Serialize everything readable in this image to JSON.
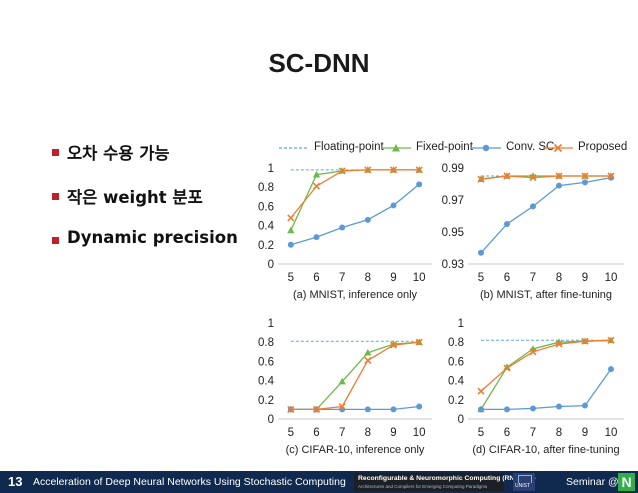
{
  "slide": {
    "title": "SC-DNN",
    "bullets": [
      "오차 수용 가능",
      "작은 weight 분포",
      "Dynamic precision"
    ]
  },
  "legend": [
    {
      "label": "Floating-point",
      "color": "#5aa9d6",
      "marker": "none",
      "dash": true
    },
    {
      "label": "Fixed-point",
      "color": "#6fb84a",
      "marker": "triangle",
      "dash": false
    },
    {
      "label": "Conv. SC",
      "color": "#5b9bd5",
      "marker": "circle",
      "dash": false
    },
    {
      "label": "Proposed",
      "color": "#ed7d31",
      "marker": "cross",
      "dash": false
    }
  ],
  "chart_data": [
    {
      "type": "line",
      "title": "(a) MNIST, inference only",
      "x": [
        5,
        6,
        7,
        8,
        9,
        10
      ],
      "ylim": [
        0,
        1
      ],
      "yticks": [
        "0",
        "0.2",
        "0.4",
        "0.6",
        "0.8",
        "1"
      ],
      "series": [
        {
          "name": "Floating-point",
          "values": [
            0.98,
            0.98,
            0.98,
            0.98,
            0.98,
            0.98
          ]
        },
        {
          "name": "Fixed-point",
          "values": [
            0.35,
            0.93,
            0.97,
            0.98,
            0.98,
            0.98
          ]
        },
        {
          "name": "Conv. SC",
          "values": [
            0.2,
            0.28,
            0.38,
            0.46,
            0.61,
            0.83
          ]
        },
        {
          "name": "Proposed",
          "values": [
            0.48,
            0.81,
            0.97,
            0.98,
            0.98,
            0.98
          ]
        }
      ]
    },
    {
      "type": "line",
      "title": "(b) MNIST, after fine-tuning",
      "x": [
        5,
        6,
        7,
        8,
        9,
        10
      ],
      "ylim": [
        0.93,
        0.99
      ],
      "yticks": [
        "0.93",
        "0.95",
        "0.97",
        "0.99"
      ],
      "series": [
        {
          "name": "Floating-point",
          "values": [
            0.985,
            0.985,
            0.985,
            0.985,
            0.985,
            0.985
          ]
        },
        {
          "name": "Fixed-point",
          "values": [
            0.983,
            0.985,
            0.985,
            0.985,
            0.985,
            0.985
          ]
        },
        {
          "name": "Conv. SC",
          "values": [
            0.937,
            0.955,
            0.966,
            0.979,
            0.981,
            0.984
          ]
        },
        {
          "name": "Proposed",
          "values": [
            0.983,
            0.985,
            0.984,
            0.985,
            0.985,
            0.985
          ]
        }
      ]
    },
    {
      "type": "line",
      "title": "(c) CIFAR-10, inference only",
      "x": [
        5,
        6,
        7,
        8,
        9,
        10
      ],
      "ylim": [
        0,
        1
      ],
      "yticks": [
        "0",
        "0.2",
        "0.4",
        "0.6",
        "0.8",
        "1"
      ],
      "series": [
        {
          "name": "Floating-point",
          "values": [
            0.81,
            0.81,
            0.81,
            0.81,
            0.81,
            0.81
          ]
        },
        {
          "name": "Fixed-point",
          "values": [
            0.1,
            0.1,
            0.39,
            0.69,
            0.78,
            0.8
          ]
        },
        {
          "name": "Conv. SC",
          "values": [
            0.1,
            0.1,
            0.1,
            0.1,
            0.1,
            0.13
          ]
        },
        {
          "name": "Proposed",
          "values": [
            0.1,
            0.1,
            0.13,
            0.61,
            0.77,
            0.8
          ]
        }
      ]
    },
    {
      "type": "line",
      "title": "(d) CIFAR-10, after fine-tuning",
      "x": [
        5,
        6,
        7,
        8,
        9,
        10
      ],
      "ylim": [
        0,
        1
      ],
      "yticks": [
        "0",
        "0.2",
        "0.4",
        "0.6",
        "0.8",
        "1"
      ],
      "series": [
        {
          "name": "Floating-point",
          "values": [
            0.82,
            0.82,
            0.82,
            0.82,
            0.82,
            0.82
          ]
        },
        {
          "name": "Fixed-point",
          "values": [
            0.1,
            0.54,
            0.73,
            0.8,
            0.81,
            0.82
          ]
        },
        {
          "name": "Conv. SC",
          "values": [
            0.1,
            0.1,
            0.11,
            0.13,
            0.14,
            0.52
          ]
        },
        {
          "name": "Proposed",
          "values": [
            0.29,
            0.53,
            0.7,
            0.78,
            0.81,
            0.82
          ]
        }
      ]
    }
  ],
  "footer": {
    "page_number": "13",
    "title": "Acceleration of Deep Neural Networks Using Stochastic Computing",
    "lab_name": "Reconfigurable & Neuromorphic Computing (RNC) Lab",
    "lab_subtitle": "Architectures and Compilers for Emerging Computing Paradigms",
    "university": "UNIST",
    "seminar_label": "Seminar @",
    "badge": "N",
    "bg_color": "#0f2a4e",
    "badge_color": "#2fae4a"
  }
}
